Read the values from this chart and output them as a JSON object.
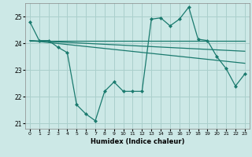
{
  "xlabel": "Humidex (Indice chaleur)",
  "background_color": "#cce8e6",
  "grid_color": "#aacfcc",
  "line_color": "#1a7a6e",
  "xlim": [
    -0.5,
    23.5
  ],
  "ylim": [
    20.8,
    25.5
  ],
  "yticks": [
    21,
    22,
    23,
    24,
    25
  ],
  "xticks": [
    0,
    1,
    2,
    3,
    4,
    5,
    6,
    7,
    8,
    9,
    10,
    11,
    12,
    13,
    14,
    15,
    16,
    17,
    18,
    19,
    20,
    21,
    22,
    23
  ],
  "series": [
    {
      "x": [
        0,
        1,
        2,
        3,
        4,
        5,
        6,
        7,
        8,
        9,
        10,
        11,
        12,
        13,
        14,
        15,
        16,
        17,
        18,
        19,
        20,
        21,
        22,
        23
      ],
      "y": [
        24.8,
        24.1,
        24.1,
        23.85,
        23.65,
        21.7,
        21.35,
        21.1,
        22.2,
        22.55,
        22.2,
        22.2,
        22.2,
        24.9,
        24.95,
        24.65,
        24.9,
        25.35,
        24.15,
        24.1,
        23.5,
        23.05,
        22.4,
        22.85
      ],
      "has_markers": true
    },
    {
      "x": [
        0,
        23
      ],
      "y": [
        24.1,
        24.1
      ],
      "has_markers": false
    },
    {
      "x": [
        0,
        23
      ],
      "y": [
        24.1,
        23.7
      ],
      "has_markers": false
    },
    {
      "x": [
        0,
        23
      ],
      "y": [
        24.1,
        23.25
      ],
      "has_markers": false
    }
  ]
}
